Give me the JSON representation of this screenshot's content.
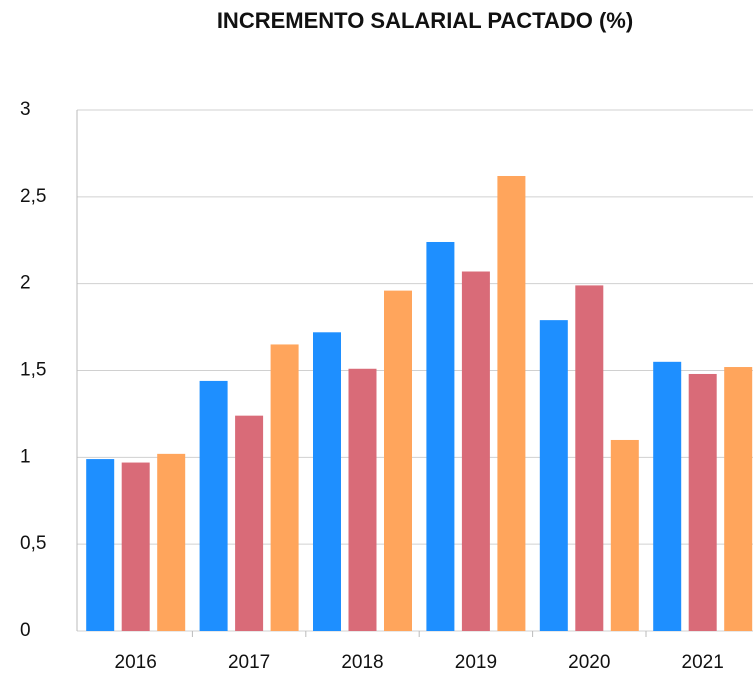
{
  "chart_data": {
    "type": "bar",
    "title": "INCREMENTO SALARIAL PACTADO (%)",
    "categories": [
      "2016",
      "2017",
      "2018",
      "2019",
      "2020",
      "2021"
    ],
    "series": [
      {
        "color": "#1e8fff",
        "values": [
          0.99,
          1.44,
          1.72,
          2.24,
          1.79,
          1.55
        ]
      },
      {
        "color": "#d96b78",
        "values": [
          0.97,
          1.24,
          1.51,
          2.07,
          1.99,
          1.48
        ]
      },
      {
        "color": "#ffa55c",
        "values": [
          1.02,
          1.65,
          1.96,
          2.62,
          1.1,
          1.52
        ]
      }
    ],
    "ylim": [
      0,
      3
    ],
    "yticks": [
      0,
      {
        "value": 0.5,
        "label": "0,5"
      },
      1,
      {
        "value": 1.5,
        "label": "1,5"
      },
      2,
      {
        "value": 2.5,
        "label": "2,5"
      },
      3
    ],
    "grid": true
  }
}
